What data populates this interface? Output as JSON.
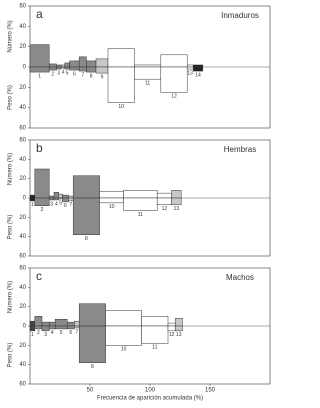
{
  "chart_data": [
    {
      "type": "costello",
      "panel_label": "a",
      "title": "Inmaduros",
      "ylabel_top": "Número (%)",
      "ylabel_bottom": "Peso (%)",
      "categories": [
        "1",
        "2",
        "3",
        "4",
        "5",
        "6",
        "7",
        "8",
        "9",
        "10",
        "11",
        "12",
        "13",
        "14"
      ],
      "frequency": [
        16,
        6,
        4,
        3,
        4,
        8,
        6,
        8,
        10,
        22,
        22,
        22,
        5,
        8
      ],
      "number": [
        22,
        3,
        2,
        2,
        4,
        6,
        10,
        6,
        8,
        18,
        2,
        12,
        2,
        2
      ],
      "weight": [
        5,
        3,
        2,
        1,
        2,
        3,
        4,
        5,
        6,
        35,
        12,
        25,
        2,
        4
      ],
      "colors": [
        "#8a8a8a",
        "#8a8a8a",
        "#8a8a8a",
        "#c8c8c8",
        "#8a8a8a",
        "#8a8a8a",
        "#8a8a8a",
        "#8a8a8a",
        "#c8c8c8",
        "#ffffff",
        "#ffffff",
        "#ffffff",
        "#ffffff",
        "#222222"
      ],
      "xlim": [
        0,
        200
      ],
      "ylim": [
        -60,
        60
      ],
      "yticks": [
        {
          "value": -60,
          "label": "60"
        },
        {
          "value": -40,
          "label": "40"
        },
        {
          "value": -20,
          "label": "20"
        },
        0,
        20,
        40,
        60
      ]
    },
    {
      "type": "costello",
      "panel_label": "b",
      "title": "Hembras",
      "ylabel_top": "Número (%)",
      "ylabel_bottom": "Peso (%)",
      "categories": [
        "1",
        "2",
        "3",
        "4",
        "5",
        "6",
        "7",
        "8",
        "10",
        "11",
        "12",
        "13"
      ],
      "frequency": [
        4,
        12,
        4,
        4,
        3,
        5,
        4,
        22,
        20,
        28,
        12,
        8
      ],
      "number": [
        3,
        30,
        2,
        6,
        4,
        3,
        2,
        23,
        7,
        8,
        5,
        8
      ],
      "weight": [
        3,
        8,
        2,
        2,
        1,
        4,
        3,
        38,
        5,
        13,
        7,
        7
      ],
      "colors": [
        "#222222",
        "#8a8a8a",
        "#8a8a8a",
        "#8a8a8a",
        "#c8c8c8",
        "#8a8a8a",
        "#c8c8c8",
        "#8a8a8a",
        "#ffffff",
        "#ffffff",
        "#ffffff",
        "#c8c8c8"
      ],
      "xlim": [
        0,
        200
      ],
      "ylim": [
        -60,
        60
      ],
      "yticks": [
        {
          "value": -60,
          "label": "60"
        },
        {
          "value": -40,
          "label": "40"
        },
        {
          "value": -20,
          "label": "20"
        },
        0,
        20,
        40,
        60
      ]
    },
    {
      "type": "costello",
      "panel_label": "c",
      "title": "Machos",
      "ylabel_top": "Número (%)",
      "ylabel_bottom": "Peso (%)",
      "xlabel": "Frecuencia de aparición acumulada (%)",
      "categories": [
        "1",
        "2",
        "3",
        "4",
        "5",
        "6",
        "7",
        "8",
        "10",
        "11",
        "12",
        "13"
      ],
      "frequency": [
        4,
        6,
        6,
        5,
        10,
        6,
        4,
        22,
        30,
        22,
        6,
        6
      ],
      "number": [
        5,
        10,
        4,
        4,
        7,
        4,
        5,
        23,
        16,
        10,
        3,
        8
      ],
      "weight": [
        5,
        3,
        5,
        3,
        3,
        3,
        2,
        38,
        20,
        18,
        5,
        5
      ],
      "colors": [
        "#444444",
        "#8a8a8a",
        "#8a8a8a",
        "#8a8a8a",
        "#8a8a8a",
        "#8a8a8a",
        "#c8c8c8",
        "#8a8a8a",
        "#ffffff",
        "#ffffff",
        "#ffffff",
        "#c8c8c8"
      ],
      "xlim": [
        0,
        200
      ],
      "ylim": [
        -60,
        60
      ],
      "xticks": [
        50,
        100,
        150
      ],
      "yticks": [
        {
          "value": -60,
          "label": "60"
        },
        {
          "value": -40,
          "label": "40"
        },
        {
          "value": -20,
          "label": "20"
        },
        0,
        20,
        40,
        60
      ]
    }
  ]
}
